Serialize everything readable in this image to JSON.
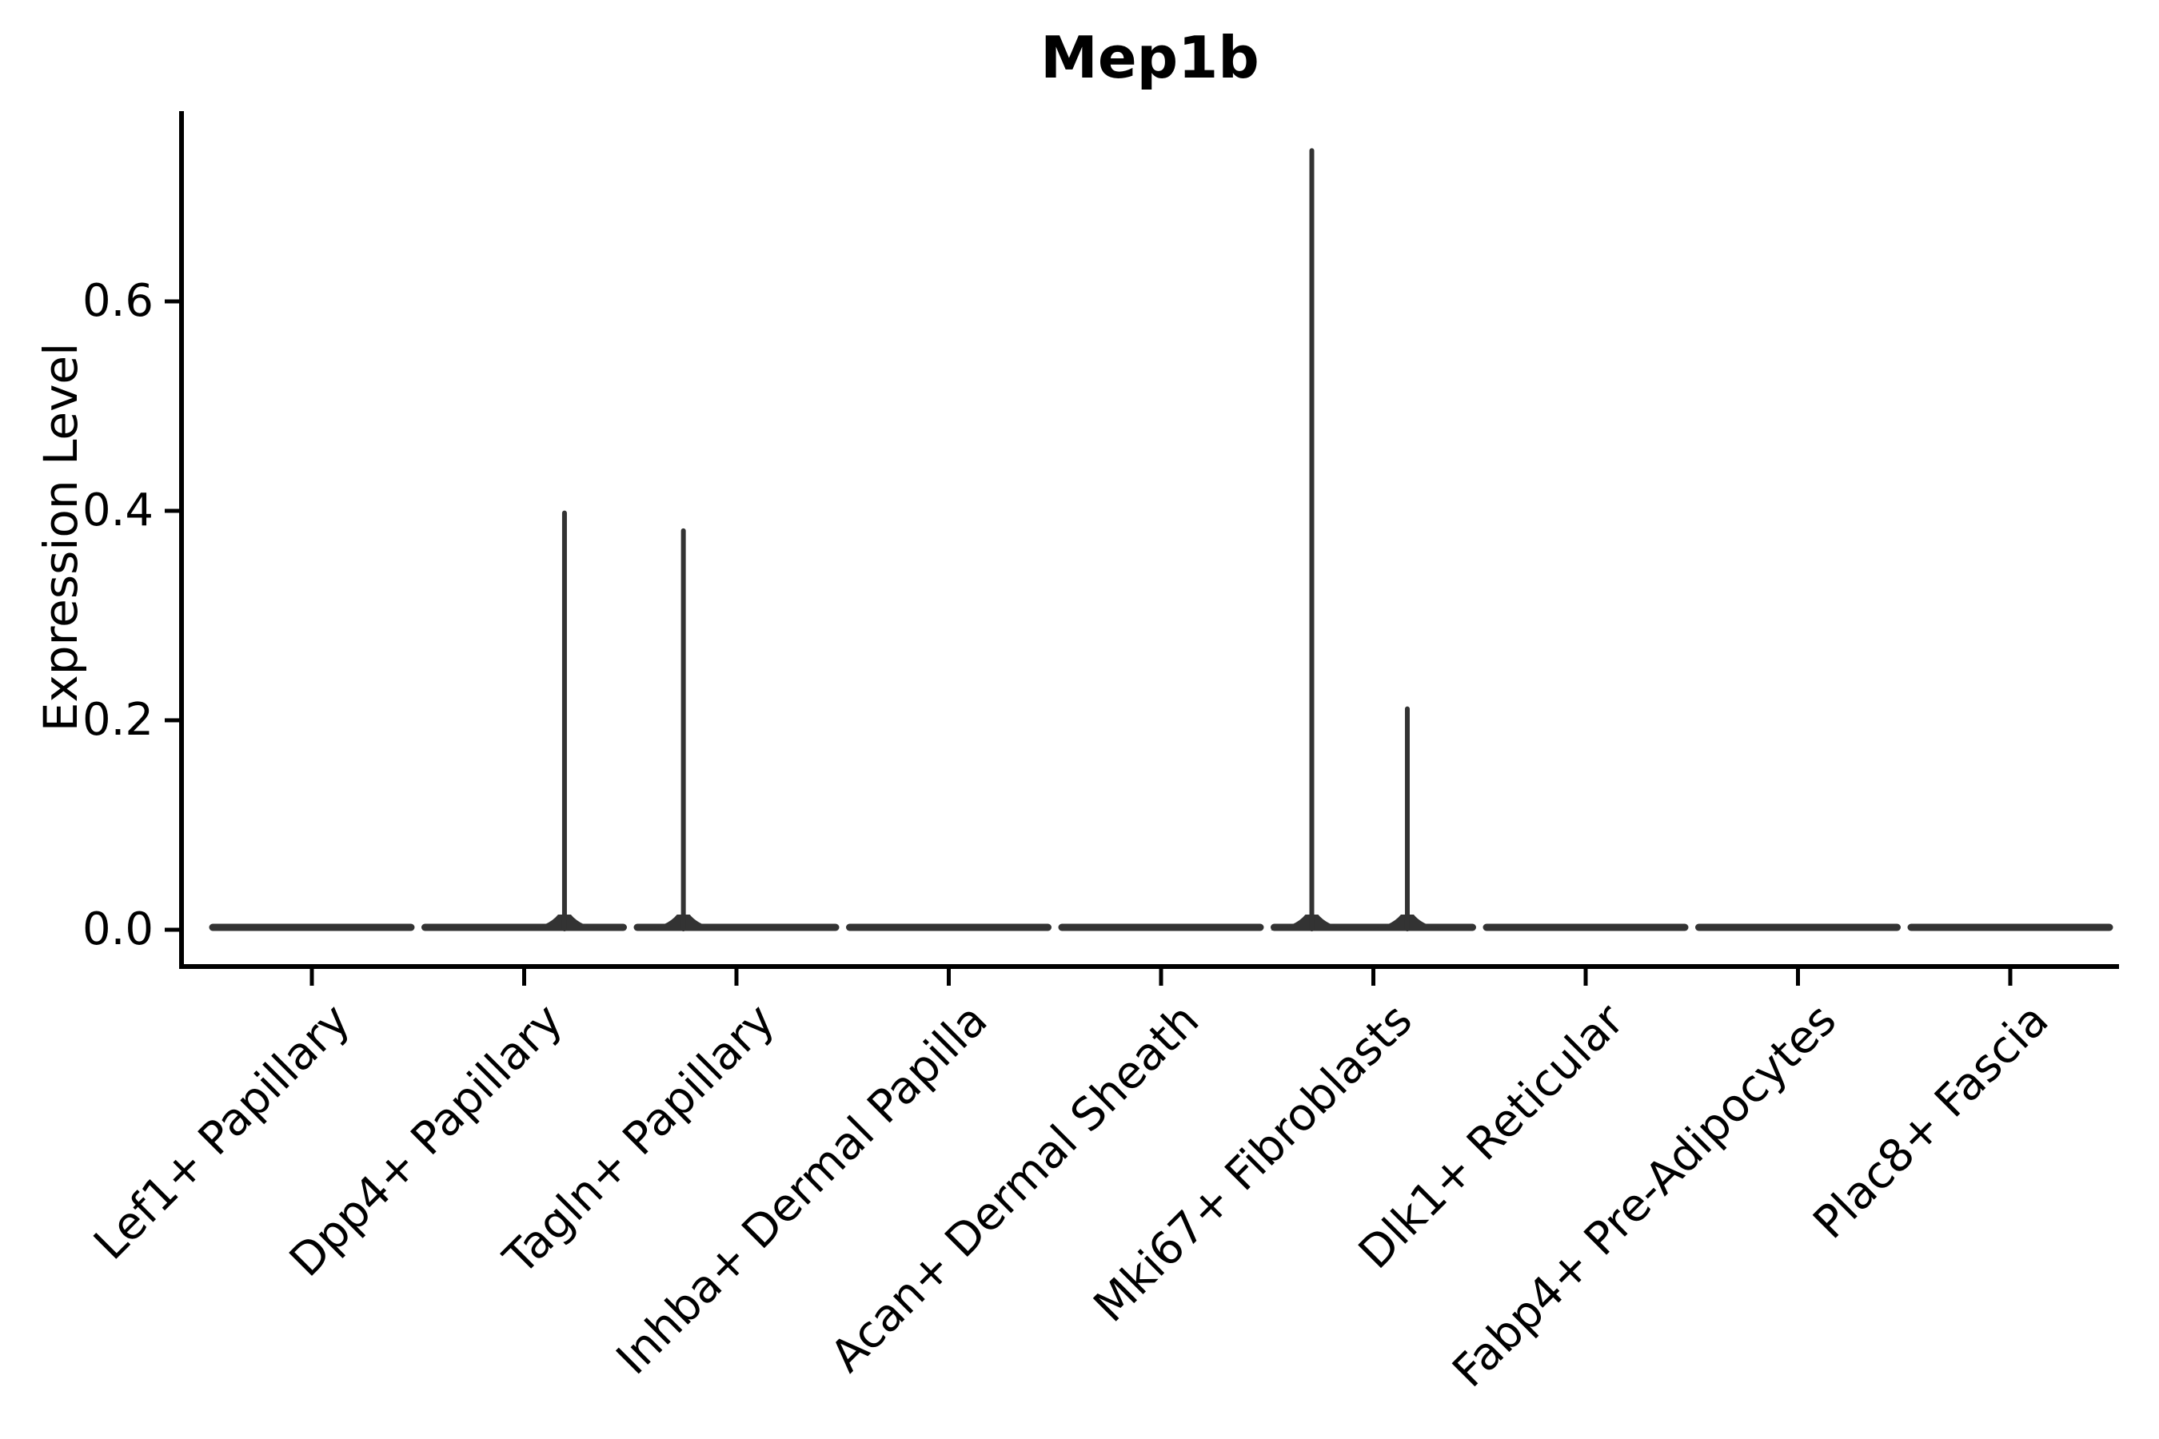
{
  "figure": {
    "title": "Mep1b",
    "ylabel": "Expression Level"
  },
  "colors": {
    "background": "#ffffff",
    "axis": "#000000",
    "text": "#000000",
    "violin": "#333333"
  },
  "chart_data": {
    "type": "violin",
    "title": "Mep1b",
    "xlabel": "",
    "ylabel": "Expression Level",
    "ylim": [
      -0.034,
      0.781
    ],
    "yticks": [
      0.0,
      0.2,
      0.4,
      0.6
    ],
    "grid": false,
    "legend": "none",
    "categories": [
      "Lef1+ Papillary",
      "Dpp4+ Papillary",
      "Tagln+ Papillary",
      "Inhba+ Dermal Papilla",
      "Acan+ Dermal Sheath",
      "Mki67+ Fibroblasts",
      "Dlk1+ Reticular",
      "Fabp4+ Pre-Adipocytes",
      "Plac8+ Fascia"
    ],
    "violins": [
      {
        "category": "Lef1+ Papillary",
        "bulk_value": 0.0,
        "max": 0.0,
        "spikes": []
      },
      {
        "category": "Dpp4+ Papillary",
        "bulk_value": 0.0,
        "max": 0.398,
        "spikes": [
          {
            "value": 0.398,
            "offset": 0.19
          }
        ]
      },
      {
        "category": "Tagln+ Papillary",
        "bulk_value": 0.0,
        "max": 0.381,
        "spikes": [
          {
            "value": 0.381,
            "offset": -0.25
          }
        ]
      },
      {
        "category": "Inhba+ Dermal Papilla",
        "bulk_value": 0.0,
        "max": 0.0,
        "spikes": []
      },
      {
        "category": "Acan+ Dermal Sheath",
        "bulk_value": 0.0,
        "max": 0.0,
        "spikes": []
      },
      {
        "category": "Mki67+ Fibroblasts",
        "bulk_value": 0.0,
        "max": 0.744,
        "spikes": [
          {
            "value": 0.744,
            "offset": -0.29
          },
          {
            "value": 0.211,
            "offset": 0.16
          }
        ]
      },
      {
        "category": "Dlk1+ Reticular",
        "bulk_value": 0.0,
        "max": 0.0,
        "spikes": []
      },
      {
        "category": "Fabp4+ Pre-Adipocytes",
        "bulk_value": 0.0,
        "max": 0.0,
        "spikes": []
      },
      {
        "category": "Plac8+ Fascia",
        "bulk_value": 0.0,
        "max": 0.0,
        "spikes": []
      }
    ]
  }
}
